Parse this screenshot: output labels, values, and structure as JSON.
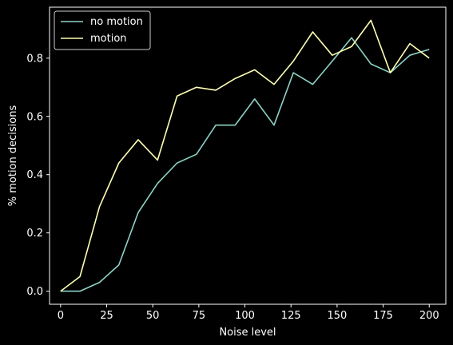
{
  "chart_data": {
    "type": "line",
    "title": "",
    "xlabel": "Noise level",
    "ylabel": "% motion decisions",
    "xlim": [
      -6,
      209
    ],
    "ylim": [
      -0.045,
      0.975
    ],
    "xticks": [
      0,
      25,
      50,
      75,
      100,
      125,
      150,
      175,
      200
    ],
    "yticks": [
      0.0,
      0.2,
      0.4,
      0.6,
      0.8
    ],
    "ytick_labels": [
      "0.0",
      "0.2",
      "0.4",
      "0.6",
      "0.8"
    ],
    "grid": false,
    "legend": "upper-left",
    "x": [
      0,
      10.5,
      21.1,
      31.6,
      42.1,
      52.6,
      63.2,
      73.7,
      84.2,
      94.7,
      105.3,
      115.8,
      126.3,
      136.8,
      147.4,
      157.9,
      168.4,
      178.9,
      189.5,
      200
    ],
    "series": [
      {
        "name": "no motion",
        "color": "#8dd3c7",
        "values": [
          0.0,
          0.0,
          0.03,
          0.09,
          0.27,
          0.37,
          0.44,
          0.47,
          0.57,
          0.57,
          0.66,
          0.57,
          0.75,
          0.71,
          0.79,
          0.87,
          0.78,
          0.75,
          0.81,
          0.83
        ]
      },
      {
        "name": "motion",
        "color": "#feffb3",
        "values": [
          0.0,
          0.05,
          0.29,
          0.44,
          0.52,
          0.45,
          0.67,
          0.7,
          0.69,
          0.73,
          0.76,
          0.71,
          0.79,
          0.89,
          0.81,
          0.84,
          0.93,
          0.75,
          0.85,
          0.8
        ]
      }
    ]
  }
}
